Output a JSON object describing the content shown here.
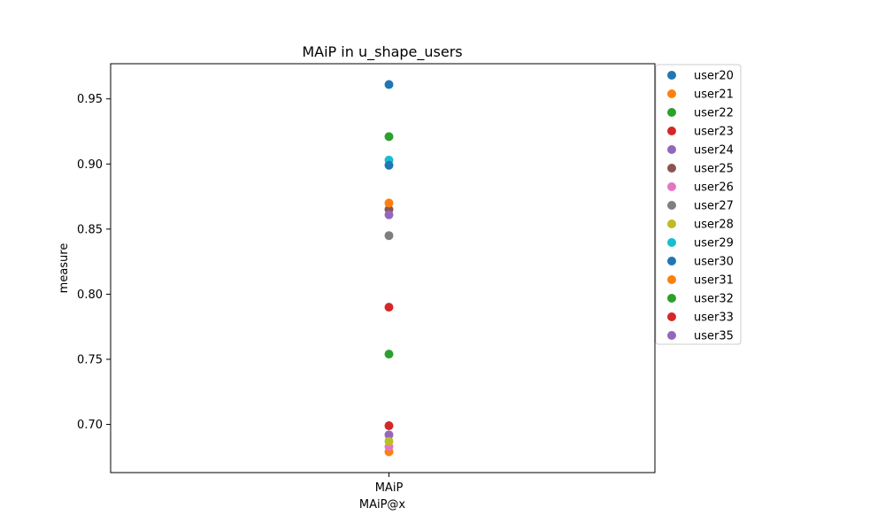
{
  "chart_data": {
    "type": "scatter",
    "title": "MAiP in u_shape_users",
    "xlabel": "MAiP@x",
    "ylabel": "measure",
    "categories": [
      "MAiP"
    ],
    "ylim": [
      0.663,
      0.977
    ],
    "yticks": [
      "0.70",
      "0.75",
      "0.80",
      "0.85",
      "0.90",
      "0.95"
    ],
    "ytick_values": [
      0.7,
      0.75,
      0.8,
      0.85,
      0.9,
      0.95
    ],
    "grid": false,
    "legend_position": "right",
    "series": [
      {
        "name": "user20",
        "color": "#1f77b4",
        "values": [
          0.961
        ]
      },
      {
        "name": "user21",
        "color": "#ff7f0e",
        "values": [
          0.679
        ]
      },
      {
        "name": "user22",
        "color": "#2ca02c",
        "values": [
          0.921
        ]
      },
      {
        "name": "user23",
        "color": "#d62728",
        "values": [
          0.699
        ]
      },
      {
        "name": "user24",
        "color": "#9467bd",
        "values": [
          0.692
        ]
      },
      {
        "name": "user25",
        "color": "#8c564b",
        "values": [
          0.865
        ]
      },
      {
        "name": "user26",
        "color": "#e377c2",
        "values": [
          0.683
        ]
      },
      {
        "name": "user27",
        "color": "#7f7f7f",
        "values": [
          0.845
        ]
      },
      {
        "name": "user28",
        "color": "#bcbd22",
        "values": [
          0.687
        ]
      },
      {
        "name": "user29",
        "color": "#17becf",
        "values": [
          0.903
        ]
      },
      {
        "name": "user30",
        "color": "#1f77b4",
        "values": [
          0.899
        ]
      },
      {
        "name": "user31",
        "color": "#ff7f0e",
        "values": [
          0.87
        ]
      },
      {
        "name": "user32",
        "color": "#2ca02c",
        "values": [
          0.754
        ]
      },
      {
        "name": "user33",
        "color": "#d62728",
        "values": [
          0.79
        ]
      },
      {
        "name": "user35",
        "color": "#9467bd",
        "values": [
          0.861
        ]
      }
    ]
  }
}
